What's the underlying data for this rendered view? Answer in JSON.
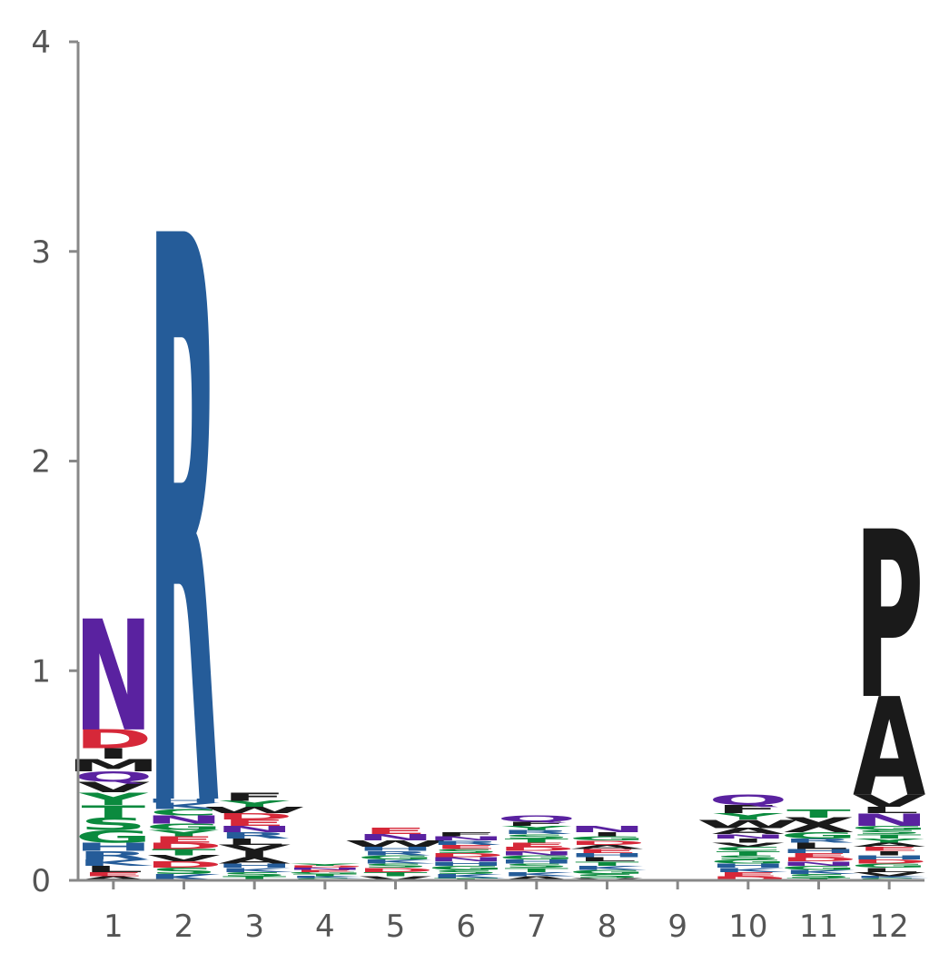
{
  "chart_data": {
    "type": "sequence-logo",
    "xlabel": "",
    "ylabel": "",
    "ylim": [
      0,
      4
    ],
    "yticks": [
      "0",
      "1",
      "2",
      "3",
      "4"
    ],
    "positions": [
      "1",
      "2",
      "3",
      "4",
      "5",
      "6",
      "7",
      "8",
      "9",
      "10",
      "11",
      "12"
    ],
    "colors": {
      "acidic": "#d62839",
      "basic": "#255c99",
      "polar": "#0b8a3e",
      "amide": "#5a22a0",
      "hydrophobic": "#1a1a1a"
    },
    "residue_colors": {
      "D": "#d62839",
      "E": "#d62839",
      "R": "#255c99",
      "K": "#255c99",
      "H": "#255c99",
      "G": "#0b8a3e",
      "S": "#0b8a3e",
      "T": "#0b8a3e",
      "Y": "#0b8a3e",
      "C": "#0b8a3e",
      "N": "#5a22a0",
      "Q": "#5a22a0",
      "A": "#1a1a1a",
      "V": "#1a1a1a",
      "L": "#1a1a1a",
      "I": "#1a1a1a",
      "P": "#1a1a1a",
      "W": "#1a1a1a",
      "F": "#1a1a1a",
      "M": "#1a1a1a"
    },
    "stacks": [
      [
        [
          "A",
          0.02
        ],
        [
          "E",
          0.02
        ],
        [
          "L",
          0.03
        ],
        [
          "K",
          0.03
        ],
        [
          "R",
          0.04
        ],
        [
          "H",
          0.04
        ],
        [
          "G",
          0.06
        ],
        [
          "S",
          0.06
        ],
        [
          "T",
          0.06
        ],
        [
          "Y",
          0.06
        ],
        [
          "V",
          0.05
        ],
        [
          "Q",
          0.05
        ],
        [
          "M",
          0.06
        ],
        [
          "I",
          0.05
        ],
        [
          "D",
          0.09
        ],
        [
          "N",
          0.53
        ]
      ],
      [
        [
          "K",
          0.03
        ],
        [
          "S",
          0.03
        ],
        [
          "D",
          0.03
        ],
        [
          "V",
          0.03
        ],
        [
          "T",
          0.03
        ],
        [
          "D",
          0.03
        ],
        [
          "E",
          0.03
        ],
        [
          "Y",
          0.03
        ],
        [
          "G",
          0.03
        ],
        [
          "N",
          0.04
        ],
        [
          "C",
          0.03
        ],
        [
          "K",
          0.03
        ],
        [
          "H",
          0.02
        ],
        [
          "R",
          2.71
        ]
      ],
      [
        [
          "T",
          0.02
        ],
        [
          "S",
          0.02
        ],
        [
          "K",
          0.02
        ],
        [
          "H",
          0.02
        ],
        [
          "A",
          0.03
        ],
        [
          "I",
          0.03
        ],
        [
          "V",
          0.03
        ],
        [
          "L",
          0.03
        ],
        [
          "R",
          0.03
        ],
        [
          "N",
          0.03
        ],
        [
          "E",
          0.03
        ],
        [
          "D",
          0.03
        ],
        [
          "W",
          0.03
        ],
        [
          "Y",
          0.03
        ],
        [
          "F",
          0.04
        ]
      ],
      [
        [
          "S",
          0.01
        ],
        [
          "K",
          0.01
        ],
        [
          "T",
          0.01
        ],
        [
          "G",
          0.01
        ],
        [
          "E",
          0.01
        ],
        [
          "N",
          0.01
        ],
        [
          "D",
          0.01
        ],
        [
          "Y",
          0.01
        ]
      ],
      [
        [
          "V",
          0.02
        ],
        [
          "T",
          0.02
        ],
        [
          "D",
          0.02
        ],
        [
          "S",
          0.02
        ],
        [
          "K",
          0.02
        ],
        [
          "G",
          0.02
        ],
        [
          "R",
          0.02
        ],
        [
          "H",
          0.02
        ],
        [
          "W",
          0.03
        ],
        [
          "N",
          0.03
        ],
        [
          "E",
          0.03
        ]
      ],
      [
        [
          "T",
          0.01
        ],
        [
          "K",
          0.02
        ],
        [
          "S",
          0.02
        ],
        [
          "G",
          0.02
        ],
        [
          "H",
          0.02
        ],
        [
          "N",
          0.02
        ],
        [
          "D",
          0.02
        ],
        [
          "S",
          0.02
        ],
        [
          "E",
          0.02
        ],
        [
          "R",
          0.02
        ],
        [
          "N",
          0.02
        ],
        [
          "F",
          0.02
        ]
      ],
      [
        [
          "A",
          0.02
        ],
        [
          "K",
          0.02
        ],
        [
          "T",
          0.02
        ],
        [
          "S",
          0.02
        ],
        [
          "H",
          0.02
        ],
        [
          "G",
          0.02
        ],
        [
          "N",
          0.02
        ],
        [
          "D",
          0.02
        ],
        [
          "E",
          0.02
        ],
        [
          "T",
          0.02
        ],
        [
          "S",
          0.02
        ],
        [
          "R",
          0.02
        ],
        [
          "Y",
          0.02
        ],
        [
          "F",
          0.02
        ],
        [
          "Q",
          0.03
        ]
      ],
      [
        [
          "V",
          0.01
        ],
        [
          "S",
          0.02
        ],
        [
          "G",
          0.02
        ],
        [
          "K",
          0.02
        ],
        [
          "T",
          0.02
        ],
        [
          "L",
          0.02
        ],
        [
          "H",
          0.02
        ],
        [
          "E",
          0.02
        ],
        [
          "A",
          0.02
        ],
        [
          "D",
          0.02
        ],
        [
          "G",
          0.02
        ],
        [
          "I",
          0.02
        ],
        [
          "N",
          0.03
        ]
      ],
      [],
      [
        [
          "D",
          0.02
        ],
        [
          "E",
          0.02
        ],
        [
          "K",
          0.02
        ],
        [
          "H",
          0.02
        ],
        [
          "G",
          0.02
        ],
        [
          "S",
          0.02
        ],
        [
          "T",
          0.02
        ],
        [
          "C",
          0.02
        ],
        [
          "V",
          0.02
        ],
        [
          "I",
          0.02
        ],
        [
          "N",
          0.02
        ],
        [
          "A",
          0.03
        ],
        [
          "W",
          0.04
        ],
        [
          "Y",
          0.03
        ],
        [
          "F",
          0.04
        ],
        [
          "Q",
          0.05
        ]
      ],
      [
        [
          "T",
          0.01
        ],
        [
          "S",
          0.02
        ],
        [
          "K",
          0.02
        ],
        [
          "G",
          0.02
        ],
        [
          "N",
          0.02
        ],
        [
          "D",
          0.02
        ],
        [
          "E",
          0.02
        ],
        [
          "H",
          0.02
        ],
        [
          "L",
          0.03
        ],
        [
          "R",
          0.02
        ],
        [
          "G",
          0.03
        ],
        [
          "X",
          0.07
        ],
        [
          "T",
          0.04
        ]
      ],
      [
        [
          "S",
          0.01
        ],
        [
          "K",
          0.01
        ],
        [
          "V",
          0.02
        ],
        [
          "L",
          0.02
        ],
        [
          "G",
          0.02
        ],
        [
          "D",
          0.02
        ],
        [
          "H",
          0.02
        ],
        [
          "I",
          0.02
        ],
        [
          "E",
          0.02
        ],
        [
          "A",
          0.02
        ],
        [
          "Y",
          0.02
        ],
        [
          "T",
          0.02
        ],
        [
          "S",
          0.02
        ],
        [
          "G",
          0.02
        ],
        [
          "N",
          0.06
        ],
        [
          "L",
          0.03
        ],
        [
          "V",
          0.06
        ],
        [
          "A",
          0.47
        ],
        [
          "P",
          0.8
        ]
      ]
    ]
  }
}
